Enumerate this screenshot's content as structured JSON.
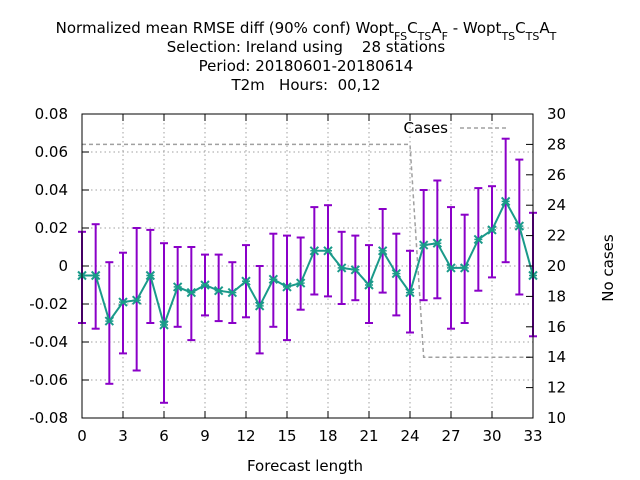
{
  "chart_data": {
    "type": "line",
    "title_parts": [
      {
        "t": "Normalized mean RMSE diff (90% conf) Wopt"
      },
      {
        "t": "FS",
        "sub": true
      },
      {
        "t": "C"
      },
      {
        "t": "TS",
        "sub": true
      },
      {
        "t": "A"
      },
      {
        "t": "F",
        "sub": true
      },
      {
        "t": " - Wopt"
      },
      {
        "t": "TS",
        "sub": true
      },
      {
        "t": "C"
      },
      {
        "t": "TS",
        "sub": true
      },
      {
        "t": "A"
      },
      {
        "t": "T",
        "sub": true
      }
    ],
    "subtitle_lines": [
      "Selection: Ireland using    28 stations",
      "Period: 20180601-20180614",
      "T2m   Hours:  00,12"
    ],
    "xlabel": "Forecast length",
    "ylabel_right": "No cases",
    "xlim": [
      0,
      33
    ],
    "ylim": [
      -0.08,
      0.08
    ],
    "y2lim": [
      10,
      30
    ],
    "x_ticks": [
      0,
      3,
      6,
      9,
      12,
      15,
      18,
      21,
      24,
      27,
      30,
      33
    ],
    "y_ticks": [
      -0.08,
      -0.06,
      -0.04,
      -0.02,
      0,
      0.02,
      0.04,
      0.06,
      0.08
    ],
    "y_tick_labels": [
      "-0.08",
      "-0.06",
      "-0.04",
      "-0.02",
      "0",
      "0.02",
      "0.04",
      "0.06",
      "0.08"
    ],
    "y2_ticks": [
      10,
      12,
      14,
      16,
      18,
      20,
      22,
      24,
      26,
      28,
      30
    ],
    "grid": true,
    "legend_position": "top-right",
    "series": [
      {
        "kind": "errorbar-line",
        "color": "#1a9a8a",
        "error_color": "#8a00c8",
        "x": [
          0,
          1,
          2,
          3,
          4,
          5,
          6,
          7,
          8,
          9,
          10,
          11,
          12,
          13,
          14,
          15,
          16,
          17,
          18,
          19,
          20,
          21,
          22,
          23,
          24,
          25,
          26,
          27,
          28,
          29,
          30,
          31,
          32,
          33
        ],
        "y": [
          -0.005,
          -0.005,
          -0.029,
          -0.019,
          -0.018,
          -0.005,
          -0.031,
          -0.011,
          -0.014,
          -0.01,
          -0.013,
          -0.014,
          -0.008,
          -0.021,
          -0.007,
          -0.011,
          -0.009,
          0.008,
          0.008,
          -0.001,
          -0.002,
          -0.01,
          0.008,
          -0.004,
          -0.014,
          0.011,
          0.012,
          -0.001,
          -0.001,
          0.014,
          0.019,
          0.034,
          0.021,
          -0.005
        ],
        "low": [
          -0.03,
          -0.033,
          -0.062,
          -0.046,
          -0.055,
          -0.03,
          -0.072,
          -0.032,
          -0.039,
          -0.026,
          -0.029,
          -0.03,
          -0.027,
          -0.046,
          -0.032,
          -0.039,
          -0.023,
          -0.015,
          -0.016,
          -0.02,
          -0.018,
          -0.03,
          -0.014,
          -0.026,
          -0.035,
          -0.018,
          -0.017,
          -0.033,
          -0.03,
          -0.013,
          -0.006,
          0.002,
          -0.015,
          -0.037
        ],
        "high": [
          0.018,
          0.022,
          0.002,
          0.007,
          0.02,
          0.019,
          0.012,
          0.01,
          0.01,
          0.006,
          0.006,
          0.002,
          0.011,
          0.0,
          0.017,
          0.016,
          0.015,
          0.031,
          0.032,
          0.018,
          0.016,
          0.011,
          0.03,
          0.017,
          0.008,
          0.04,
          0.045,
          0.031,
          0.027,
          0.041,
          0.042,
          0.067,
          0.056,
          0.028
        ]
      },
      {
        "kind": "step",
        "name": "Cases",
        "axis": "y2",
        "color": "#a0a0a0",
        "x": [
          0,
          24,
          24.5,
          25,
          33
        ],
        "y": [
          28,
          28,
          21,
          14,
          14
        ]
      }
    ]
  }
}
